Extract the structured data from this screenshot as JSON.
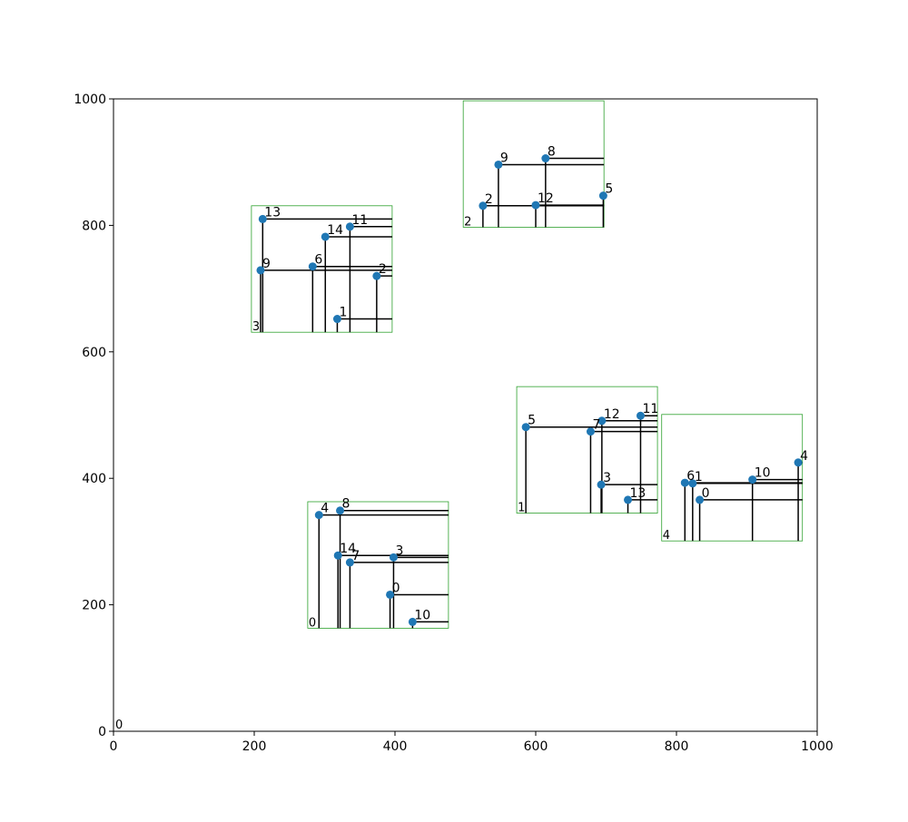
{
  "chart_data": {
    "type": "scatter",
    "xlim": [
      0,
      1000
    ],
    "ylim": [
      0,
      1000
    ],
    "x_ticks": [
      "0",
      "200",
      "400",
      "600",
      "800",
      "1000"
    ],
    "y_ticks": [
      "0",
      "200",
      "400",
      "600",
      "800",
      "1000"
    ],
    "grid": false,
    "origin_label": "0",
    "colors": {
      "point": "#1f77b4",
      "line": "#000000",
      "box": "#2ca02c"
    },
    "clusters": [
      {
        "label": "0",
        "box": [
          276,
          163,
          476,
          363
        ],
        "points": [
          {
            "id": "0",
            "x": 393,
            "y": 216
          },
          {
            "id": "3",
            "x": 398,
            "y": 275
          },
          {
            "id": "4",
            "x": 292,
            "y": 342
          },
          {
            "id": "7",
            "x": 336,
            "y": 267
          },
          {
            "id": "8",
            "x": 322,
            "y": 349
          },
          {
            "id": "10",
            "x": 425,
            "y": 173
          },
          {
            "id": "14",
            "x": 319,
            "y": 278
          }
        ]
      },
      {
        "label": "1",
        "box": [
          573,
          345,
          773,
          545
        ],
        "points": [
          {
            "id": "3",
            "x": 693,
            "y": 390
          },
          {
            "id": "5",
            "x": 586,
            "y": 481
          },
          {
            "id": "7",
            "x": 678,
            "y": 474
          },
          {
            "id": "11",
            "x": 749,
            "y": 499
          },
          {
            "id": "12",
            "x": 694,
            "y": 491
          },
          {
            "id": "13",
            "x": 731,
            "y": 366
          }
        ]
      },
      {
        "label": "2",
        "box": [
          497,
          797,
          697,
          997
        ],
        "points": [
          {
            "id": "2",
            "x": 525,
            "y": 831
          },
          {
            "id": "5",
            "x": 696,
            "y": 847
          },
          {
            "id": "8",
            "x": 614,
            "y": 906
          },
          {
            "id": "9",
            "x": 547,
            "y": 896
          },
          {
            "id": "12",
            "x": 600,
            "y": 832
          }
        ]
      },
      {
        "label": "3",
        "box": [
          196,
          631,
          396,
          831
        ],
        "points": [
          {
            "id": "1",
            "x": 318,
            "y": 652
          },
          {
            "id": "2",
            "x": 374,
            "y": 720
          },
          {
            "id": "6",
            "x": 283,
            "y": 735
          },
          {
            "id": "9",
            "x": 209,
            "y": 729
          },
          {
            "id": "11",
            "x": 336,
            "y": 798
          },
          {
            "id": "13",
            "x": 212,
            "y": 810
          },
          {
            "id": "14",
            "x": 301,
            "y": 782
          }
        ]
      },
      {
        "label": "4",
        "box": [
          779,
          301,
          979,
          501
        ],
        "points": [
          {
            "id": "0",
            "x": 833,
            "y": 366
          },
          {
            "id": "1",
            "x": 823,
            "y": 392
          },
          {
            "id": "4",
            "x": 973,
            "y": 425
          },
          {
            "id": "6",
            "x": 812,
            "y": 393
          },
          {
            "id": "10",
            "x": 908,
            "y": 398
          }
        ]
      }
    ]
  }
}
